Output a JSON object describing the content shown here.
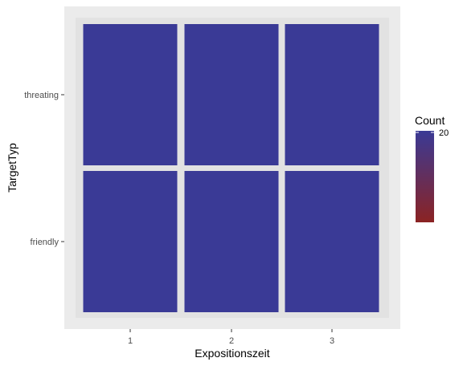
{
  "chart_data": {
    "type": "heatmap",
    "x_categories": [
      "1",
      "2",
      "3"
    ],
    "y_categories": [
      "friendly",
      "threating"
    ],
    "cells": [
      {
        "x": "1",
        "y": "threating",
        "value": 20
      },
      {
        "x": "2",
        "y": "threating",
        "value": 20
      },
      {
        "x": "3",
        "y": "threating",
        "value": 20
      },
      {
        "x": "1",
        "y": "friendly",
        "value": 20
      },
      {
        "x": "2",
        "y": "friendly",
        "value": 20
      },
      {
        "x": "3",
        "y": "friendly",
        "value": 20
      }
    ],
    "xlabel": "Expositionszeit",
    "ylabel": "TargetTyp",
    "legend": {
      "title": "Count",
      "labels": [
        "20"
      ],
      "color_low": "#8b2323",
      "color_high": "#3a3a96",
      "position": "right"
    },
    "colors": {
      "panel_background": "#ebebeb",
      "cell": "#3a3a96"
    },
    "grid": true
  }
}
